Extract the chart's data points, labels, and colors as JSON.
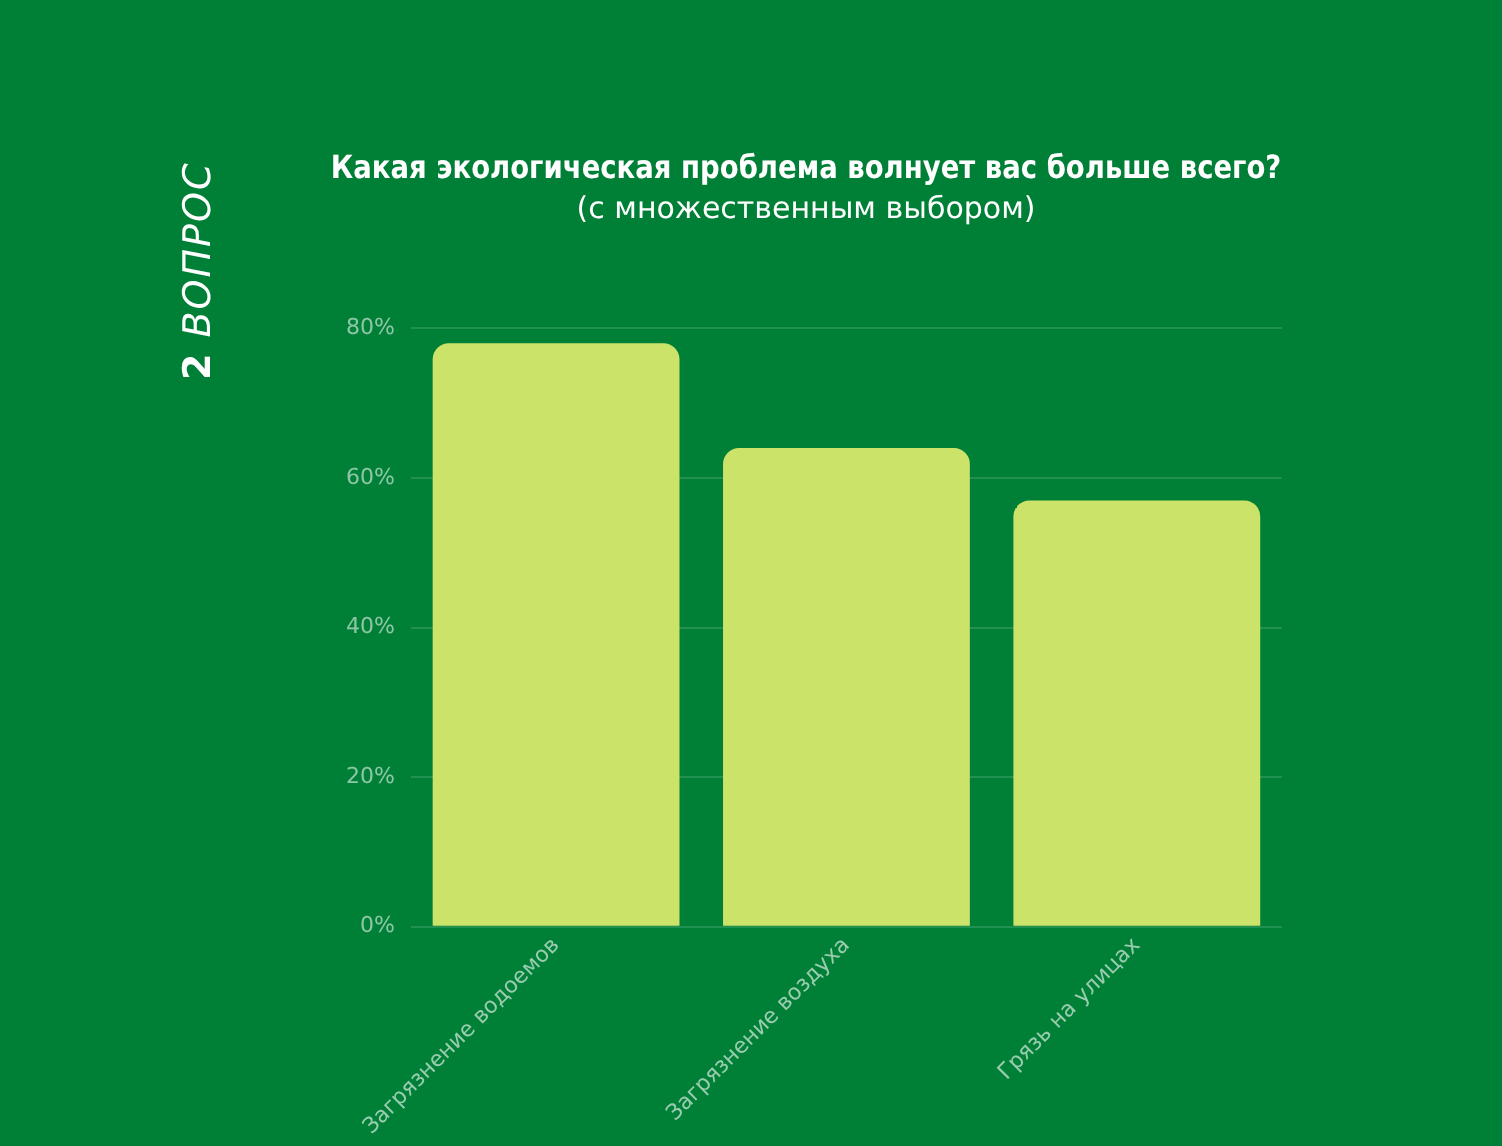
{
  "chart_data": {
    "type": "bar",
    "title": "Какая экологическая проблема волнует вас больше всего?",
    "subtitle": "(с множественным выбором)",
    "annotations": [
      "2 ВОПРОС"
    ],
    "categories": [
      "Загрязнение водоемов",
      "Загрязнение воздуха",
      "Грязь на улицах"
    ],
    "values": [
      78,
      64,
      57
    ],
    "color": "#cce36a",
    "ylim": [
      0,
      80
    ],
    "yticks": [
      {
        "value": 0,
        "label": "0%"
      },
      {
        "value": 20,
        "label": "20%"
      },
      {
        "value": 40,
        "label": "40%"
      },
      {
        "value": 60,
        "label": "60%"
      },
      {
        "value": 80,
        "label": "80%"
      }
    ],
    "grid": "y",
    "legend": false
  }
}
